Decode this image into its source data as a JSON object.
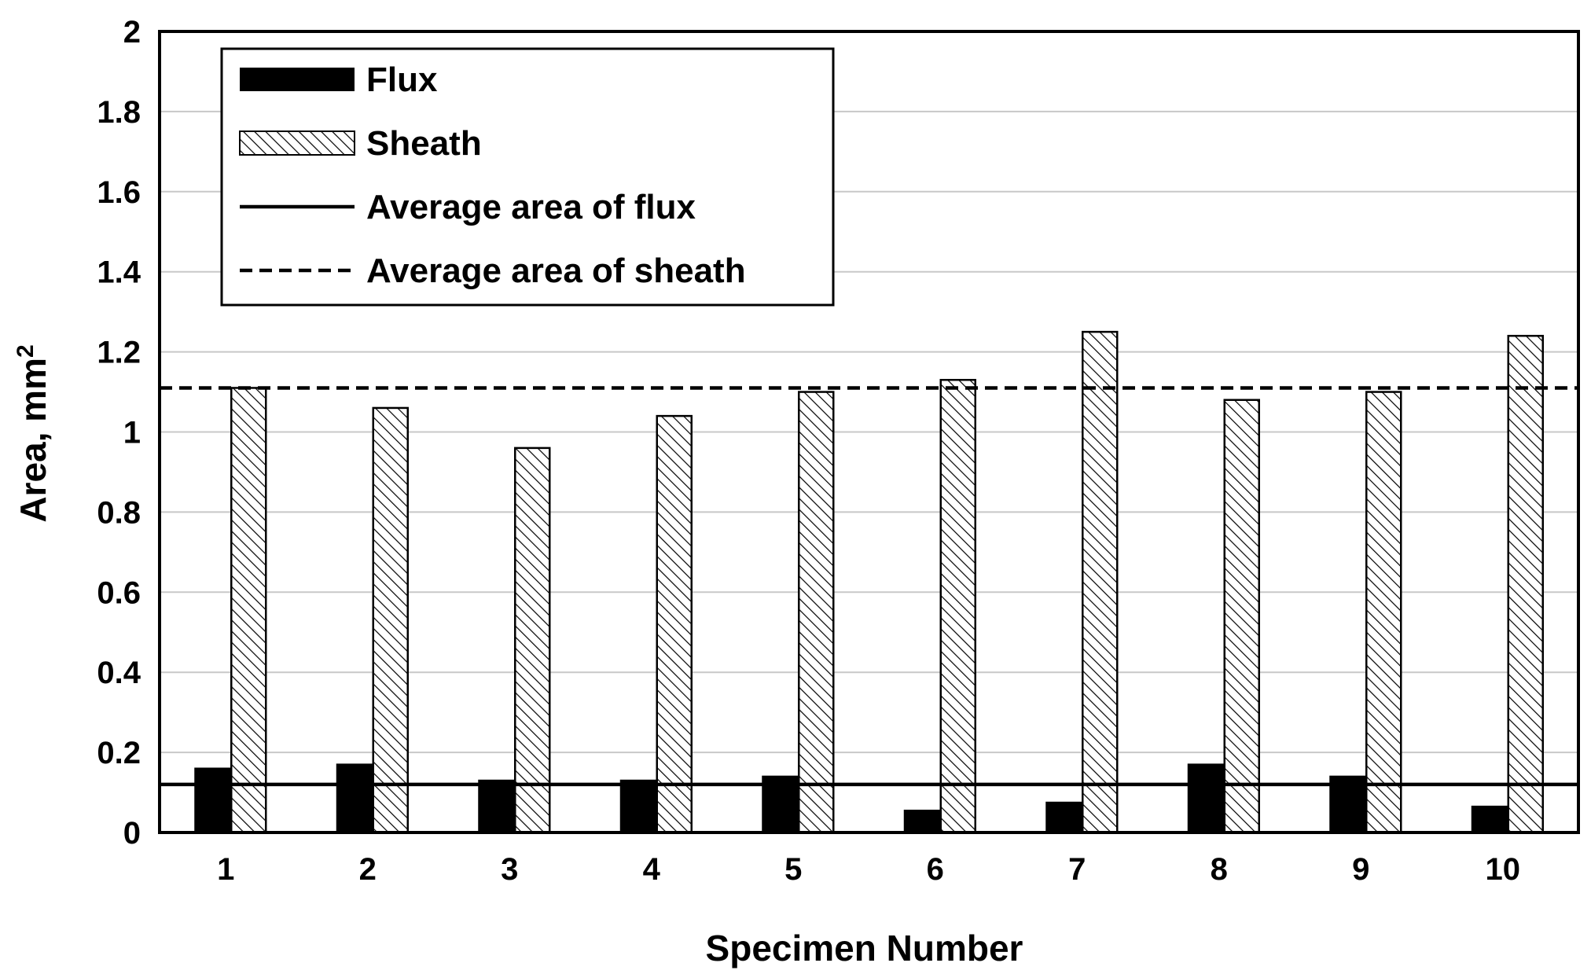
{
  "chart_data": {
    "type": "bar",
    "title": "",
    "xlabel": "Specimen Number",
    "ylabel": "Area, mm",
    "ylabel_superscript": "2",
    "ylim": [
      0,
      2
    ],
    "yticks": [
      "0",
      "0.2",
      "0.4",
      "0.6",
      "0.8",
      "1",
      "1.2",
      "1.4",
      "1.6",
      "1.8",
      "2"
    ],
    "ytick_step": 0.2,
    "grid": "horizontal",
    "legend_position": "top-left",
    "categories": [
      "1",
      "2",
      "3",
      "4",
      "5",
      "6",
      "7",
      "8",
      "9",
      "10"
    ],
    "series": [
      {
        "name": "Flux",
        "style": "solid-black",
        "values": [
          0.16,
          0.17,
          0.13,
          0.13,
          0.14,
          0.055,
          0.075,
          0.17,
          0.14,
          0.065
        ]
      },
      {
        "name": "Sheath",
        "style": "hatched",
        "values": [
          1.11,
          1.06,
          0.96,
          1.04,
          1.1,
          1.13,
          1.25,
          1.08,
          1.1,
          1.24
        ]
      }
    ],
    "reference_lines": [
      {
        "name": "Average area of flux",
        "style": "solid",
        "value": 0.12
      },
      {
        "name": "Average area of sheath",
        "style": "dashed",
        "value": 1.11
      }
    ],
    "colors": {
      "flux": "#000000",
      "sheath_fill": "#ffffff",
      "sheath_hatch": "#000000",
      "grid": "#c8c8c8",
      "axis": "#000000"
    }
  }
}
